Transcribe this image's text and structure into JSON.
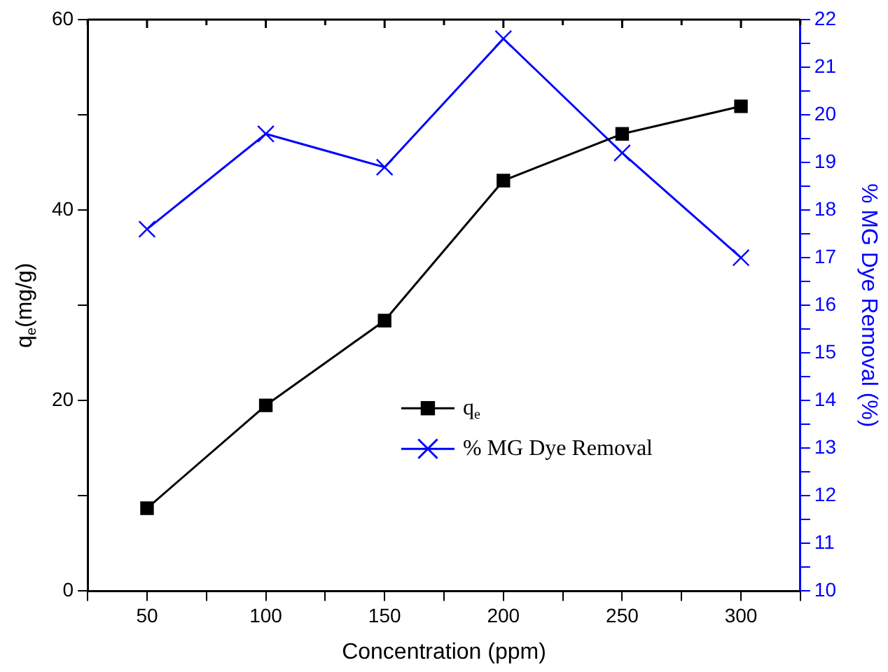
{
  "chart_data": {
    "type": "line",
    "xlabel": "Concentration (ppm)",
    "ylabel": "q$_{e}$(mg/g)",
    "y2label": "% MG Dye Removal (%)",
    "x": [
      50,
      100,
      150,
      200,
      250,
      300
    ],
    "xlim": [
      25,
      325
    ],
    "xticks": [
      {
        "value": 25,
        "label": null
      },
      50,
      {
        "value": 75,
        "label": null
      },
      100,
      {
        "value": 125,
        "label": null
      },
      150,
      {
        "value": 175,
        "label": null
      },
      200,
      {
        "value": 225,
        "label": null
      },
      250,
      {
        "value": 275,
        "label": null
      },
      300,
      {
        "value": 325,
        "label": null
      }
    ],
    "ylim": [
      0,
      60
    ],
    "yticks": [
      0,
      {
        "value": 10,
        "label": null
      },
      20,
      {
        "value": 30,
        "label": null
      },
      40,
      {
        "value": 50,
        "label": null
      },
      60
    ],
    "y2lim": [
      10,
      22
    ],
    "y2ticks": [
      10,
      {
        "value": 10.5,
        "label": null
      },
      11,
      {
        "value": 11.5,
        "label": null
      },
      12,
      {
        "value": 12.5,
        "label": null
      },
      13,
      {
        "value": 13.5,
        "label": null
      },
      14,
      {
        "value": 14.5,
        "label": null
      },
      15,
      {
        "value": 15.5,
        "label": null
      },
      16,
      {
        "value": 16.5,
        "label": null
      },
      17,
      {
        "value": 17.5,
        "label": null
      },
      18,
      {
        "value": 18.5,
        "label": null
      },
      19,
      {
        "value": 19.5,
        "label": null
      },
      20,
      {
        "value": 20.5,
        "label": null
      },
      21,
      {
        "value": 21.5,
        "label": null
      },
      22
    ],
    "series": [
      {
        "name": "q$_{e}$",
        "color": "#000000",
        "marker": "square",
        "values": [
          8.7,
          19.5,
          28.4,
          43.1,
          48.0,
          50.9
        ]
      },
      {
        "name": "% MG Dye Removal",
        "color": "#0000ff",
        "marker": "cross",
        "axis": "y2",
        "values": [
          17.6,
          19.6,
          18.9,
          21.6,
          19.2,
          17.0
        ]
      }
    ],
    "legend": "center",
    "grid": false,
    "line_style": "solid"
  }
}
